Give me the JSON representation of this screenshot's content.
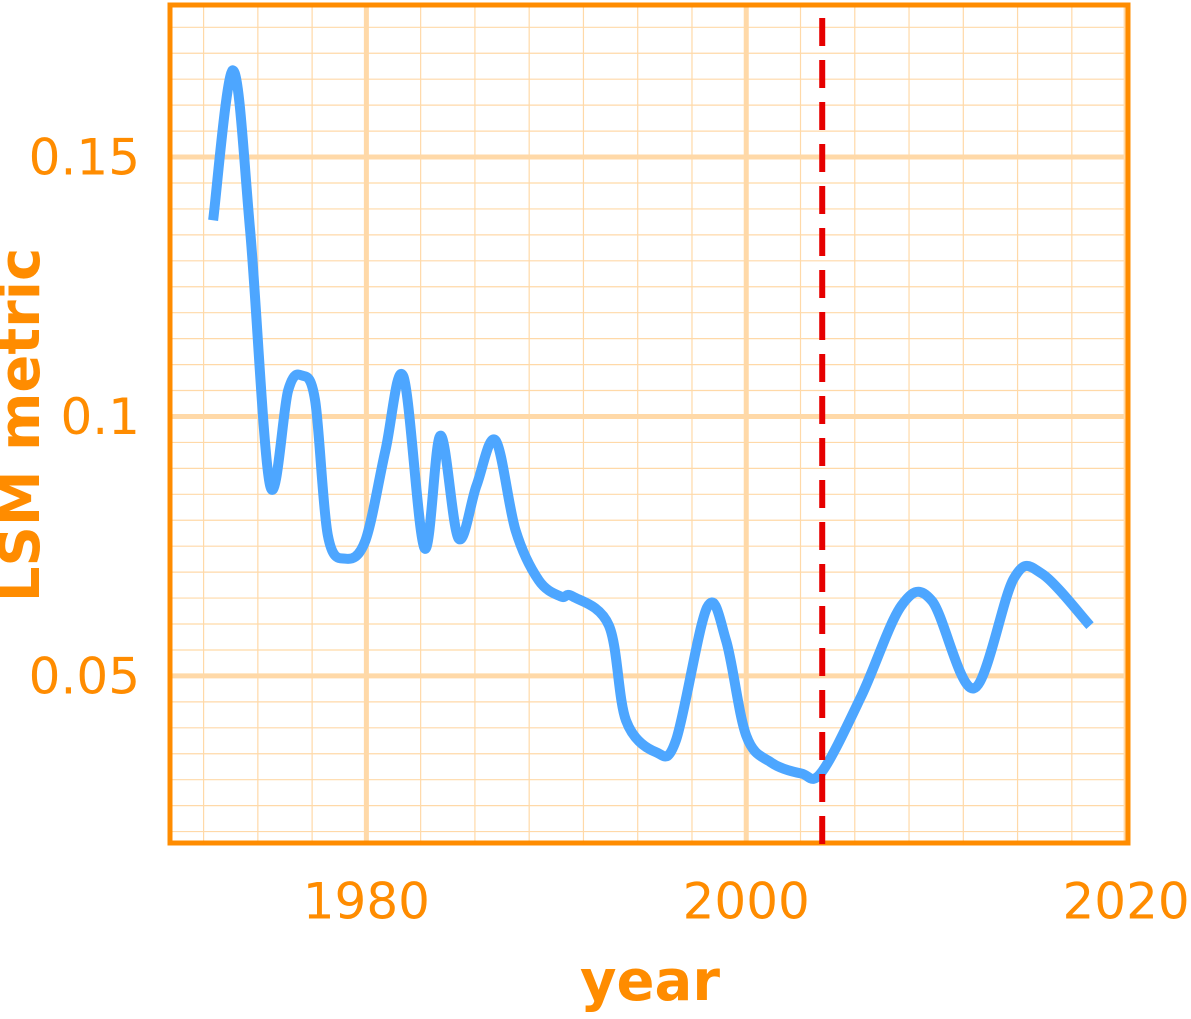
{
  "chart_data": {
    "type": "line",
    "x_label": "year",
    "y_label": "LSM metric",
    "xlim": [
      1969.66,
      2020.1
    ],
    "ylim": [
      0.0178,
      0.1793
    ],
    "xticks": [
      1980,
      2000,
      2020
    ],
    "yticks": [
      0.05,
      0.1,
      0.15
    ],
    "minor_divisions": {
      "x": 7,
      "y": 10
    },
    "grid": true,
    "axis_color": "#ff8c00",
    "grid_color": "#ffd9a8",
    "vline": {
      "x": 2004,
      "color": "#e60000"
    },
    "series": [
      {
        "name": "LSM",
        "color": "#4da6ff",
        "x": [
          1971.93,
          1972.98,
          1973.88,
          1974.93,
          1975.88,
          1976.6,
          1977.3,
          1977.97,
          1978.9,
          1979.95,
          1981.0,
          1981.95,
          1983.06,
          1983.9,
          1984.85,
          1985.8,
          1986.8,
          1987.86,
          1989.08,
          1990.24,
          1990.87,
          1992.77,
          1993.67,
          1995.25,
          1996.3,
          1997.94,
          1998.94,
          2000.0,
          2001.32,
          2002.9,
          2003.96,
          2006.07,
          2008.18,
          2009.77,
          2011.98,
          2014.09,
          2015.57,
          2018.1
        ],
        "values": [
          0.1378,
          0.1667,
          0.1358,
          0.0867,
          0.105,
          0.1079,
          0.1031,
          0.0771,
          0.0726,
          0.0761,
          0.0934,
          0.1077,
          0.0746,
          0.0963,
          0.0765,
          0.0867,
          0.0954,
          0.078,
          0.0684,
          0.0653,
          0.0653,
          0.0597,
          0.0414,
          0.0353,
          0.0376,
          0.0632,
          0.0568,
          0.0385,
          0.0333,
          0.0312,
          0.0314,
          0.0462,
          0.0636,
          0.0645,
          0.0476,
          0.0688,
          0.0697,
          0.0597
        ]
      }
    ]
  }
}
